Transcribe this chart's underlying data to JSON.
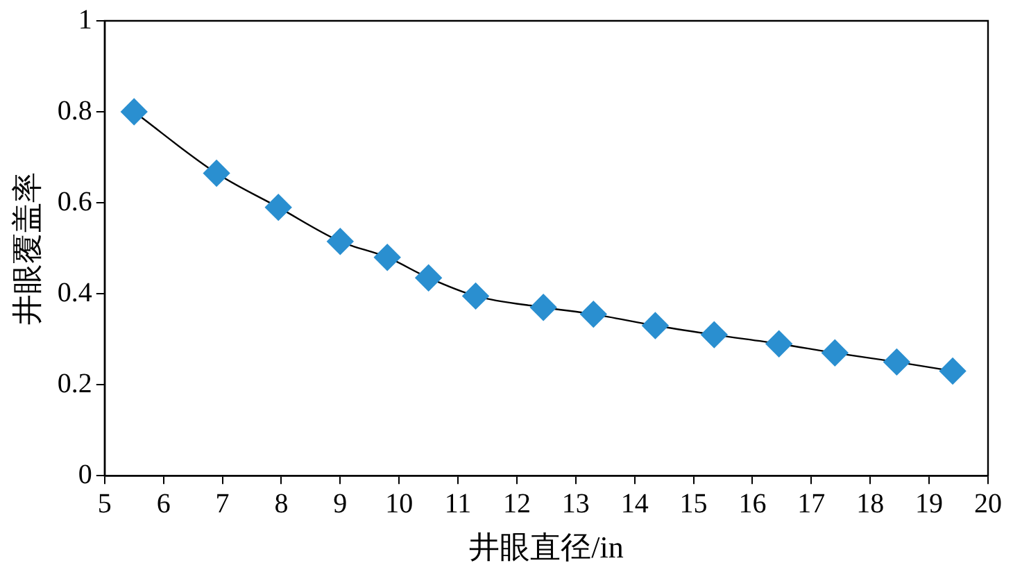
{
  "chart_data": {
    "type": "line",
    "xlabel": "井眼直径/in",
    "ylabel": "井眼覆盖率",
    "x": [
      5.5,
      6.9,
      7.95,
      9.0,
      9.8,
      10.5,
      11.3,
      12.45,
      13.3,
      14.35,
      15.35,
      16.45,
      17.4,
      18.45,
      19.4
    ],
    "series": [
      {
        "color": "#2a8fd0",
        "values": [
          0.8,
          0.665,
          0.59,
          0.515,
          0.48,
          0.435,
          0.395,
          0.37,
          0.355,
          0.33,
          0.31,
          0.29,
          0.27,
          0.25,
          0.23
        ]
      }
    ],
    "xlim": [
      5,
      20
    ],
    "xticks": [
      5,
      6,
      7,
      8,
      9,
      10,
      11,
      12,
      13,
      14,
      15,
      16,
      17,
      18,
      19,
      20
    ],
    "ylim": [
      0,
      1
    ],
    "yticks": [
      0,
      0.2,
      0.4,
      0.6,
      0.8,
      1
    ],
    "grid": false,
    "legend": false,
    "marker": "diamond",
    "line_style": "solid"
  }
}
